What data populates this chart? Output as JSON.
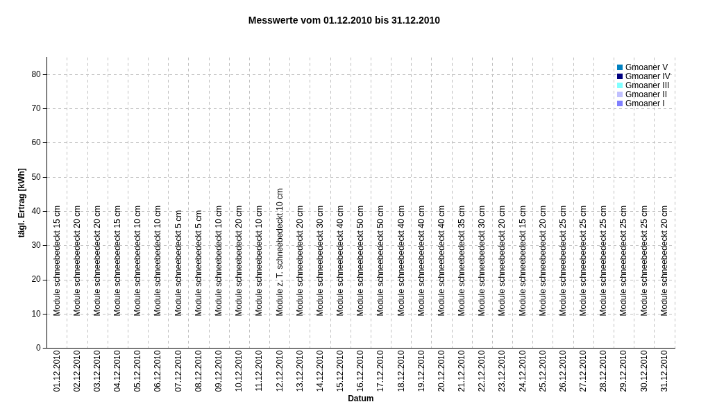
{
  "chart_data": {
    "type": "bar",
    "title": "Messwerte vom 01.12.2010 bis 31.12.2010",
    "xlabel": "Datum",
    "ylabel": "tägl. Ertrag [kWh]",
    "categories": [
      "01.12.2010",
      "02.12.2010",
      "03.12.2010",
      "04.12.2010",
      "05.12.2010",
      "06.12.2010",
      "07.12.2010",
      "08.12.2010",
      "09.12.2010",
      "10.12.2010",
      "11.12.2010",
      "12.12.2010",
      "13.12.2010",
      "14.12.2010",
      "15.12.2010",
      "16.12.2010",
      "17.12.2010",
      "18.12.2010",
      "19.12.2010",
      "20.12.2010",
      "21.12.2010",
      "22.12.2010",
      "23.12.2010",
      "24.12.2010",
      "25.12.2010",
      "26.12.2010",
      "27.12.2010",
      "28.12.2010",
      "29.12.2010",
      "30.12.2010",
      "31.12.2010"
    ],
    "series": [
      {
        "name": "Gmoaner I",
        "color": "#8080ff",
        "values": [
          0,
          0,
          0,
          0,
          0,
          0,
          0,
          0,
          0,
          0,
          0,
          0,
          0,
          0,
          0,
          0,
          0,
          0,
          0,
          0,
          0,
          0,
          0,
          0,
          0,
          0,
          0,
          0,
          0,
          0,
          0
        ]
      },
      {
        "name": "Gmoaner II",
        "color": "#c0c0ff",
        "values": [
          0,
          0,
          0,
          0,
          0,
          0,
          0,
          0,
          0,
          0,
          0,
          0,
          0,
          0,
          0,
          0,
          0,
          0,
          0,
          0,
          0,
          0,
          0,
          0,
          0,
          0,
          0,
          0,
          0,
          0,
          0
        ]
      },
      {
        "name": "Gmoaner III",
        "color": "#80ffff",
        "values": [
          0,
          0,
          0,
          0,
          0,
          0,
          0,
          0,
          0,
          0,
          0,
          0,
          0,
          0,
          0,
          0,
          0,
          0,
          0,
          0,
          0,
          0,
          0,
          0,
          0,
          0,
          0,
          0,
          0,
          0,
          0
        ]
      },
      {
        "name": "Gmoaner IV",
        "color": "#000080",
        "values": [
          0,
          0,
          0,
          0,
          0,
          0,
          0,
          0,
          0,
          0,
          0,
          0,
          0,
          0,
          0,
          0,
          0,
          0,
          0,
          0,
          0,
          0,
          0,
          0,
          0,
          0,
          0,
          0,
          0,
          0,
          0
        ]
      },
      {
        "name": "Gmoaner V",
        "color": "#0080c0",
        "values": [
          0,
          0,
          0,
          0,
          0,
          0,
          0,
          0,
          0,
          0,
          0,
          0,
          0,
          0,
          0,
          0,
          0,
          0,
          0,
          0,
          0,
          0,
          0,
          0,
          0,
          0,
          0,
          0,
          0,
          0,
          0
        ]
      }
    ],
    "ylim": [
      0,
      85
    ],
    "yticks": [
      0,
      10,
      20,
      30,
      40,
      50,
      60,
      70,
      80
    ],
    "grid": true,
    "legend": "top right",
    "annotations": [
      "Module schneebedeckt 15 cm",
      "Module schneebedeckt 20 cm",
      "Module schneebedeckt 20 cm",
      "Module schneebedeckt 15 cm",
      "Module schneebedeckt 10 cm",
      "Module schneebedeckt 10 cm",
      "Module schneebedeckt 5 cm",
      "Module schneebedeckt 5 cm",
      "Module schneebedeckt 10 cm",
      "Module schneebedeckt 20 cm",
      "Module schneebedeckt 10 cm",
      "Module z. T. schneebedeckt 10 cm",
      "Module schneebedeckt 20 cm",
      "Module schneebedeckt 30 cm",
      "Module schneebedeckt 40 cm",
      "Module schneebedeckt 50 cm",
      "Module schneebedeckt 50 cm",
      "Module schneebedeckt 40 cm",
      "Module schneebedeckt 40 cm",
      "Module schneebedeckt 40 cm",
      "Module schneebedeckt 35 cm",
      "Module schneebedeckt 30 cm",
      "Module schneebedeckt 20 cm",
      "Module schneebedeckt 15 cm",
      "Module schneebedeckt 20 cm",
      "Module schneebedeckt 25 cm",
      "Module schneebedeckt 25 cm",
      "Module schneebedeckt 25 cm",
      "Module schneebedeckt 25 cm",
      "Module schneebedeckt 25 cm",
      "Module schneebedeckt 20 cm"
    ]
  }
}
